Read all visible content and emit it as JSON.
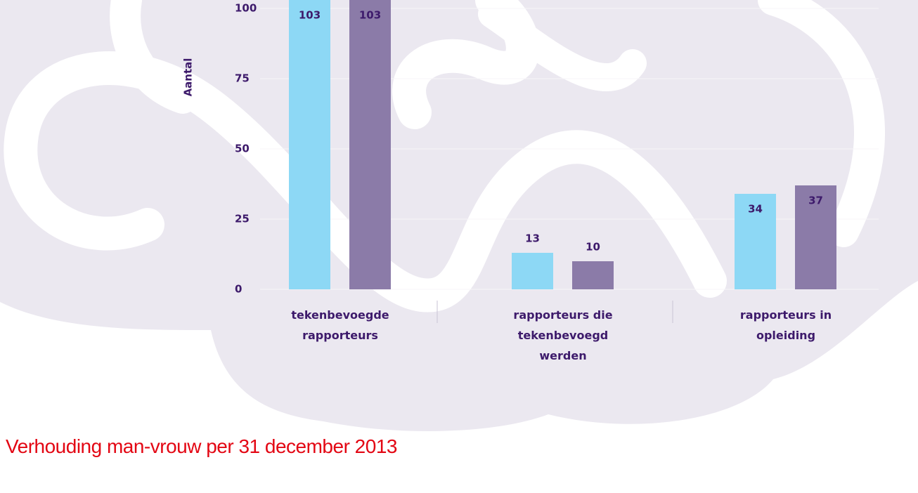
{
  "chart_data": {
    "type": "bar",
    "y_label": "Aantal",
    "caption": "Verhouding man-vrouw per 31 december 2013",
    "categories": [
      "tekenbevoegde rapporteurs",
      "rapporteurs die tekenbevoegd werden",
      "rapporteurs in opleiding"
    ],
    "series": [
      {
        "color": "#8dd8f5",
        "values": [
          103,
          13,
          34
        ]
      },
      {
        "color": "#8b7ba8",
        "values": [
          103,
          10,
          37
        ]
      }
    ],
    "ylim": [
      0,
      103
    ],
    "yticks": [
      0,
      25,
      50,
      75,
      100
    ],
    "grid": true,
    "data_labels": true
  }
}
